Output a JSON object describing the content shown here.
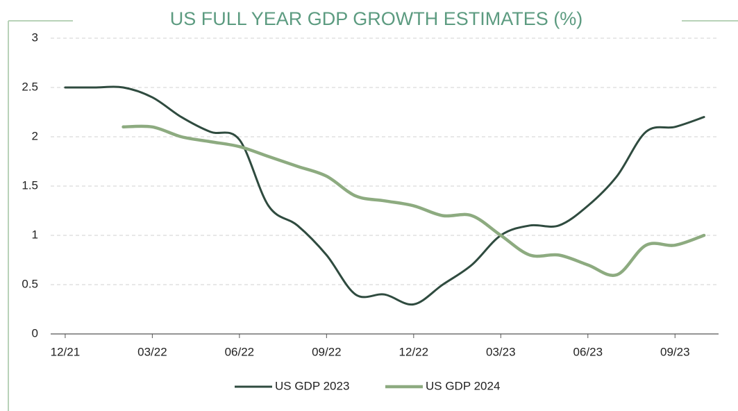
{
  "chart_data": {
    "type": "line",
    "title": "US FULL YEAR GDP GROWTH ESTIMATES (%)",
    "categories": [
      "12/21",
      null,
      null,
      "03/22",
      null,
      null,
      "06/22",
      null,
      null,
      "09/22",
      null,
      null,
      "12/22",
      null,
      null,
      "03/23",
      null,
      null,
      "06/23",
      null,
      null,
      "09/23",
      null
    ],
    "series": [
      {
        "name": "US GDP 2023",
        "color": "#2f4b3f",
        "values": [
          2.5,
          2.5,
          2.5,
          2.4,
          2.2,
          2.05,
          1.97,
          1.3,
          1.1,
          0.8,
          0.4,
          0.4,
          0.3,
          0.5,
          0.7,
          1.0,
          1.1,
          1.1,
          1.3,
          1.6,
          2.05,
          2.1,
          2.2
        ]
      },
      {
        "name": "US GDP 2024",
        "color": "#8dab80",
        "values": [
          null,
          null,
          2.1,
          2.1,
          2.0,
          1.95,
          1.9,
          1.8,
          1.7,
          1.6,
          1.4,
          1.35,
          1.3,
          1.2,
          1.2,
          1.0,
          0.8,
          0.8,
          0.7,
          0.6,
          0.9,
          0.9,
          1.0
        ]
      }
    ],
    "ylim": [
      0,
      3
    ],
    "yticks": [
      0,
      0.5,
      1,
      1.5,
      2,
      2.5,
      3
    ],
    "grid": true,
    "legend": "bottom"
  }
}
